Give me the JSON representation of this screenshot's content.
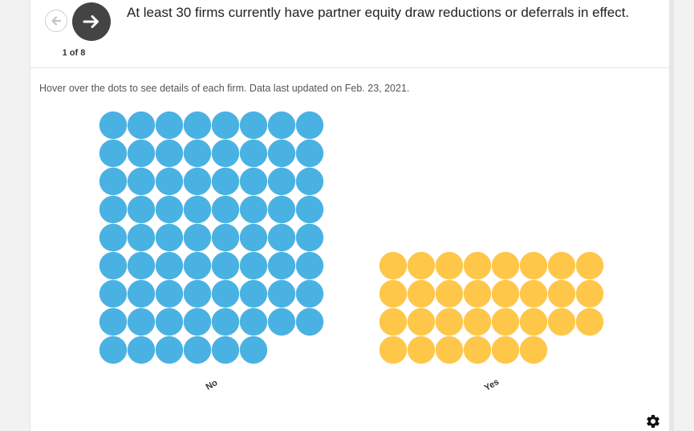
{
  "header": {
    "headline": "At least 30 firms currently have partner equity draw reductions or deferrals in effect.",
    "counter": "1 of 8",
    "prev_icon": "arrow-left-icon",
    "next_icon": "arrow-right-icon"
  },
  "note": "Hover over the dots to see details of each firm. Data last updated on Feb. 23, 2021.",
  "settings_icon": "gear-icon",
  "colors": {
    "No": "#4AB2E3",
    "Yes": "#FFC74A",
    "next_button": "#444444"
  },
  "chart_data": {
    "type": "dot-grid",
    "title": "",
    "categories": [
      "No",
      "Yes"
    ],
    "values": [
      70,
      30
    ],
    "dots_per_row": 8
  }
}
